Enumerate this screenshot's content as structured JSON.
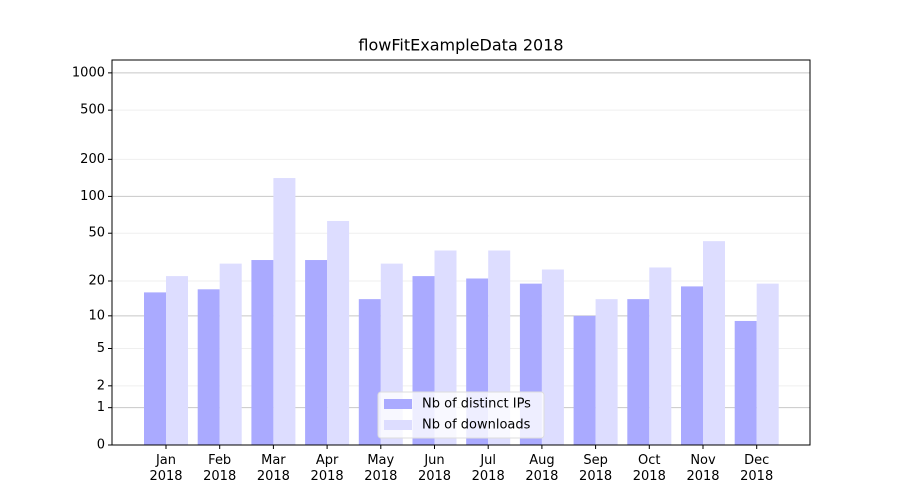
{
  "chart_data": {
    "type": "bar",
    "title": "flowFitExampleData 2018",
    "categories": [
      "Jan\n2018",
      "Feb\n2018",
      "Mar\n2018",
      "Apr\n2018",
      "May\n2018",
      "Jun\n2018",
      "Jul\n2018",
      "Aug\n2018",
      "Sep\n2018",
      "Oct\n2018",
      "Nov\n2018",
      "Dec\n2018"
    ],
    "series": [
      {
        "name": "Nb of distinct IPs",
        "color": "#aaaaff",
        "values": [
          16,
          17,
          30,
          30,
          14,
          22,
          21,
          19,
          10,
          14,
          18,
          9
        ]
      },
      {
        "name": "Nb of downloads",
        "color": "#ddddff",
        "values": [
          22,
          28,
          141,
          63,
          28,
          36,
          36,
          25,
          14,
          26,
          43,
          19
        ]
      }
    ],
    "y_scale": "log1p",
    "ylim": [
      0,
      1270
    ],
    "yticks": [
      0,
      1,
      2,
      5,
      10,
      20,
      50,
      100,
      200,
      500,
      1000
    ],
    "grid": true,
    "legend_position": "lower center"
  }
}
